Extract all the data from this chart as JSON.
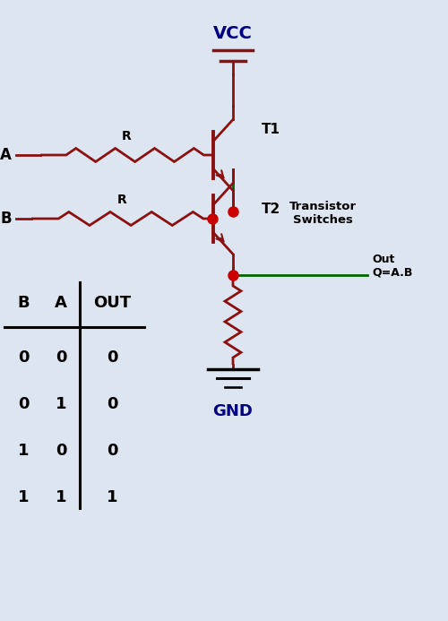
{
  "bg_color": "#dde5f0",
  "wire_color": "#8b1010",
  "green_color": "#006400",
  "dot_color": "#cc0000",
  "text_color": "#000080",
  "vcc_label": "VCC",
  "gnd_label": "GND",
  "transistor_switches_label": "Transistor\nSwitches",
  "out_label": "Out\nQ=A.B",
  "T1_label": "T1",
  "T2_label": "T2",
  "R_label": "R",
  "A_label": "A",
  "B_label": "B",
  "table_headers": [
    "B",
    "A",
    "OUT"
  ],
  "table_rows": [
    [
      "0",
      "0",
      "0"
    ],
    [
      "0",
      "1",
      "0"
    ],
    [
      "1",
      "0",
      "0"
    ],
    [
      "1",
      "1",
      "1"
    ]
  ]
}
